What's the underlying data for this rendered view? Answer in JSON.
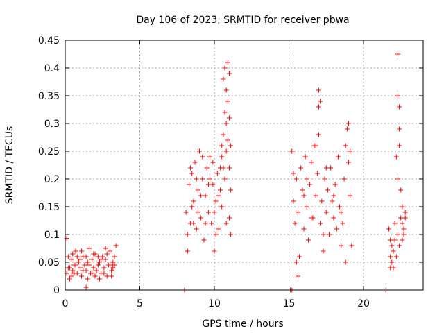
{
  "chart_data": {
    "type": "scatter",
    "title": "Day 106 of 2023, SRMTID for receiver pbwa",
    "xlabel": "GPS time / hours",
    "ylabel": "SRMTID / TECUs",
    "xlim": [
      0,
      24
    ],
    "ylim": [
      0,
      0.45
    ],
    "xticks": [
      0,
      5,
      10,
      15,
      20
    ],
    "yticks": [
      0,
      0.05,
      0.1,
      0.15,
      0.2,
      0.25,
      0.3,
      0.35,
      0.4,
      0.45
    ],
    "grid": true,
    "legend": "none",
    "marker": "plus",
    "color": "#ff0000",
    "series": [
      {
        "points": [
          [
            0.1,
            0.093
          ],
          [
            0.1,
            0.03
          ],
          [
            0.2,
            0.06
          ],
          [
            0.3,
            0.04
          ],
          [
            0.4,
            0.055
          ],
          [
            0.5,
            0.035
          ],
          [
            0.6,
            0.045
          ],
          [
            0.7,
            0.07
          ],
          [
            0.8,
            0.03
          ],
          [
            0.9,
            0.05
          ],
          [
            1.0,
            0.04
          ],
          [
            1.1,
            0.025
          ],
          [
            1.2,
            0.06
          ],
          [
            1.3,
            0.045
          ],
          [
            1.4,
            0.035
          ],
          [
            1.5,
            0.05
          ],
          [
            1.6,
            0.075
          ],
          [
            1.7,
            0.03
          ],
          [
            1.8,
            0.055
          ],
          [
            1.9,
            0.04
          ],
          [
            2.0,
            0.065
          ],
          [
            2.1,
            0.035
          ],
          [
            2.2,
            0.045
          ],
          [
            2.3,
            0.05
          ],
          [
            2.4,
            0.03
          ],
          [
            2.5,
            0.06
          ],
          [
            2.6,
            0.04
          ],
          [
            2.7,
            0.055
          ],
          [
            2.8,
            0.025
          ],
          [
            2.9,
            0.045
          ],
          [
            3.0,
            0.07
          ],
          [
            3.1,
            0.035
          ],
          [
            3.2,
            0.05
          ],
          [
            3.3,
            0.06
          ],
          [
            3.4,
            0.08
          ],
          [
            0.3,
            0.02
          ],
          [
            0.5,
            0.065
          ],
          [
            0.7,
            0.045
          ],
          [
            1.1,
            0.07
          ],
          [
            1.5,
            0.02
          ],
          [
            1.9,
            0.065
          ],
          [
            2.3,
            0.02
          ],
          [
            2.7,
            0.075
          ],
          [
            3.1,
            0.025
          ],
          [
            3.3,
            0.045
          ],
          [
            0.2,
            0.04
          ],
          [
            0.6,
            0.03
          ],
          [
            1.0,
            0.055
          ],
          [
            1.4,
            0.06
          ],
          [
            1.8,
            0.03
          ],
          [
            2.2,
            0.06
          ],
          [
            2.6,
            0.03
          ],
          [
            3.0,
            0.045
          ],
          [
            0.4,
            0.025
          ],
          [
            0.8,
            0.06
          ],
          [
            1.2,
            0.035
          ],
          [
            1.6,
            0.045
          ],
          [
            2.0,
            0.025
          ],
          [
            2.4,
            0.055
          ],
          [
            2.8,
            0.065
          ],
          [
            1.4,
            0.005
          ],
          [
            3.2,
            0.04
          ],
          [
            8.0,
            0.0
          ],
          [
            15.1,
            0.0
          ],
          [
            15.2,
            0.0
          ],
          [
            21.5,
            0.0
          ],
          [
            8.1,
            0.14
          ],
          [
            8.2,
            0.07
          ],
          [
            8.3,
            0.19
          ],
          [
            8.4,
            0.12
          ],
          [
            8.5,
            0.21
          ],
          [
            8.6,
            0.16
          ],
          [
            8.7,
            0.23
          ],
          [
            8.8,
            0.11
          ],
          [
            8.9,
            0.18
          ],
          [
            9.0,
            0.25
          ],
          [
            9.1,
            0.13
          ],
          [
            9.2,
            0.2
          ],
          [
            9.3,
            0.09
          ],
          [
            9.4,
            0.17
          ],
          [
            9.5,
            0.22
          ],
          [
            9.6,
            0.14
          ],
          [
            9.7,
            0.24
          ],
          [
            9.8,
            0.12
          ],
          [
            9.9,
            0.19
          ],
          [
            10.0,
            0.07
          ],
          [
            10.1,
            0.16
          ],
          [
            10.2,
            0.21
          ],
          [
            10.3,
            0.11
          ],
          [
            10.4,
            0.18
          ],
          [
            8.2,
            0.1
          ],
          [
            8.5,
            0.15
          ],
          [
            8.8,
            0.2
          ],
          [
            9.1,
            0.17
          ],
          [
            9.4,
            0.12
          ],
          [
            9.7,
            0.2
          ],
          [
            10.0,
            0.14
          ],
          [
            10.3,
            0.17
          ],
          [
            8.4,
            0.22
          ],
          [
            8.9,
            0.14
          ],
          [
            9.6,
            0.19
          ],
          [
            10.1,
            0.1
          ],
          [
            9.2,
            0.24
          ],
          [
            8.6,
            0.12
          ],
          [
            9.9,
            0.23
          ],
          [
            10.4,
            0.22
          ],
          [
            10.5,
            0.24
          ],
          [
            10.5,
            0.26
          ],
          [
            10.6,
            0.28
          ],
          [
            10.6,
            0.38
          ],
          [
            10.7,
            0.4
          ],
          [
            10.7,
            0.32
          ],
          [
            10.8,
            0.36
          ],
          [
            10.8,
            0.3
          ],
          [
            10.9,
            0.41
          ],
          [
            10.9,
            0.34
          ],
          [
            11.0,
            0.39
          ],
          [
            11.0,
            0.31
          ],
          [
            10.6,
            0.22
          ],
          [
            10.7,
            0.2
          ],
          [
            10.8,
            0.25
          ],
          [
            10.9,
            0.27
          ],
          [
            11.1,
            0.26
          ],
          [
            11.1,
            0.18
          ],
          [
            11.0,
            0.22
          ],
          [
            10.5,
            0.15
          ],
          [
            10.8,
            0.12
          ],
          [
            11.1,
            0.1
          ],
          [
            11.0,
            0.13
          ],
          [
            15.2,
            0.25
          ],
          [
            15.3,
            0.16
          ],
          [
            15.4,
            0.12
          ],
          [
            15.5,
            0.2
          ],
          [
            15.6,
            0.14
          ],
          [
            15.7,
            0.06
          ],
          [
            15.8,
            0.22
          ],
          [
            15.9,
            0.18
          ],
          [
            16.0,
            0.11
          ],
          [
            16.1,
            0.24
          ],
          [
            16.2,
            0.15
          ],
          [
            16.3,
            0.09
          ],
          [
            16.4,
            0.19
          ],
          [
            16.5,
            0.23
          ],
          [
            16.6,
            0.13
          ],
          [
            16.7,
            0.26
          ],
          [
            16.8,
            0.17
          ],
          [
            16.9,
            0.21
          ],
          [
            17.0,
            0.28
          ],
          [
            17.1,
            0.12
          ],
          [
            17.2,
            0.16
          ],
          [
            17.3,
            0.07
          ],
          [
            17.4,
            0.2
          ],
          [
            17.5,
            0.14
          ],
          [
            17.6,
            0.18
          ],
          [
            17.7,
            0.1
          ],
          [
            17.8,
            0.22
          ],
          [
            17.9,
            0.16
          ],
          [
            18.0,
            0.13
          ],
          [
            18.1,
            0.19
          ],
          [
            18.2,
            0.11
          ],
          [
            18.3,
            0.24
          ],
          [
            18.4,
            0.15
          ],
          [
            18.5,
            0.08
          ],
          [
            18.6,
            0.12
          ],
          [
            18.7,
            0.2
          ],
          [
            18.8,
            0.26
          ],
          [
            18.9,
            0.29
          ],
          [
            19.0,
            0.23
          ],
          [
            19.1,
            0.17
          ],
          [
            19.2,
            0.08
          ],
          [
            15.5,
            0.05
          ],
          [
            15.6,
            0.025
          ],
          [
            16.0,
            0.17
          ],
          [
            16.5,
            0.13
          ],
          [
            17.0,
            0.36
          ],
          [
            17.0,
            0.33
          ],
          [
            17.1,
            0.34
          ],
          [
            16.8,
            0.26
          ],
          [
            17.5,
            0.22
          ],
          [
            18.0,
            0.17
          ],
          [
            18.5,
            0.14
          ],
          [
            19.0,
            0.3
          ],
          [
            19.1,
            0.25
          ],
          [
            15.3,
            0.21
          ],
          [
            16.2,
            0.2
          ],
          [
            17.3,
            0.1
          ],
          [
            18.8,
            0.05
          ],
          [
            21.8,
            0.09
          ],
          [
            21.9,
            0.05
          ],
          [
            22.0,
            0.07
          ],
          [
            22.1,
            0.12
          ],
          [
            22.2,
            0.06
          ],
          [
            22.3,
            0.1
          ],
          [
            22.4,
            0.08
          ],
          [
            22.5,
            0.13
          ],
          [
            22.6,
            0.15
          ],
          [
            22.7,
            0.11
          ],
          [
            22.8,
            0.14
          ],
          [
            21.8,
            0.06
          ],
          [
            22.0,
            0.04
          ],
          [
            22.2,
            0.24
          ],
          [
            22.3,
            0.35
          ],
          [
            22.3,
            0.425
          ],
          [
            22.4,
            0.29
          ],
          [
            22.4,
            0.33
          ],
          [
            22.4,
            0.26
          ],
          [
            22.3,
            0.2
          ],
          [
            22.5,
            0.18
          ],
          [
            22.6,
            0.12
          ],
          [
            22.7,
            0.1
          ],
          [
            21.9,
            0.08
          ],
          [
            21.7,
            0.11
          ],
          [
            21.8,
            0.04
          ],
          [
            22.1,
            0.09
          ],
          [
            22.6,
            0.09
          ],
          [
            22.8,
            0.13
          ]
        ]
      }
    ]
  }
}
